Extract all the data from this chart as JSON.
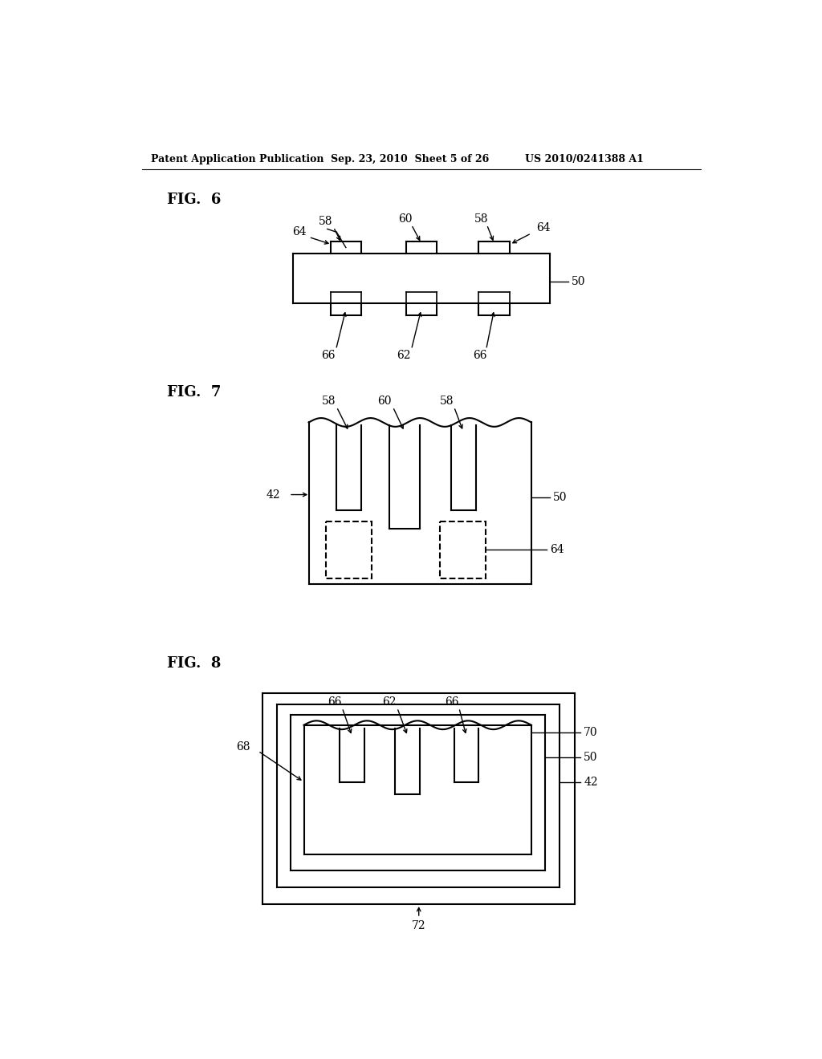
{
  "background_color": "#ffffff",
  "header_left": "Patent Application Publication",
  "header_mid": "Sep. 23, 2010  Sheet 5 of 26",
  "header_right": "US 2010/0241388 A1",
  "fig6_label": "FIG.  6",
  "fig7_label": "FIG.  7",
  "fig8_label": "FIG.  8",
  "line_color": "#000000",
  "line_width": 1.5
}
